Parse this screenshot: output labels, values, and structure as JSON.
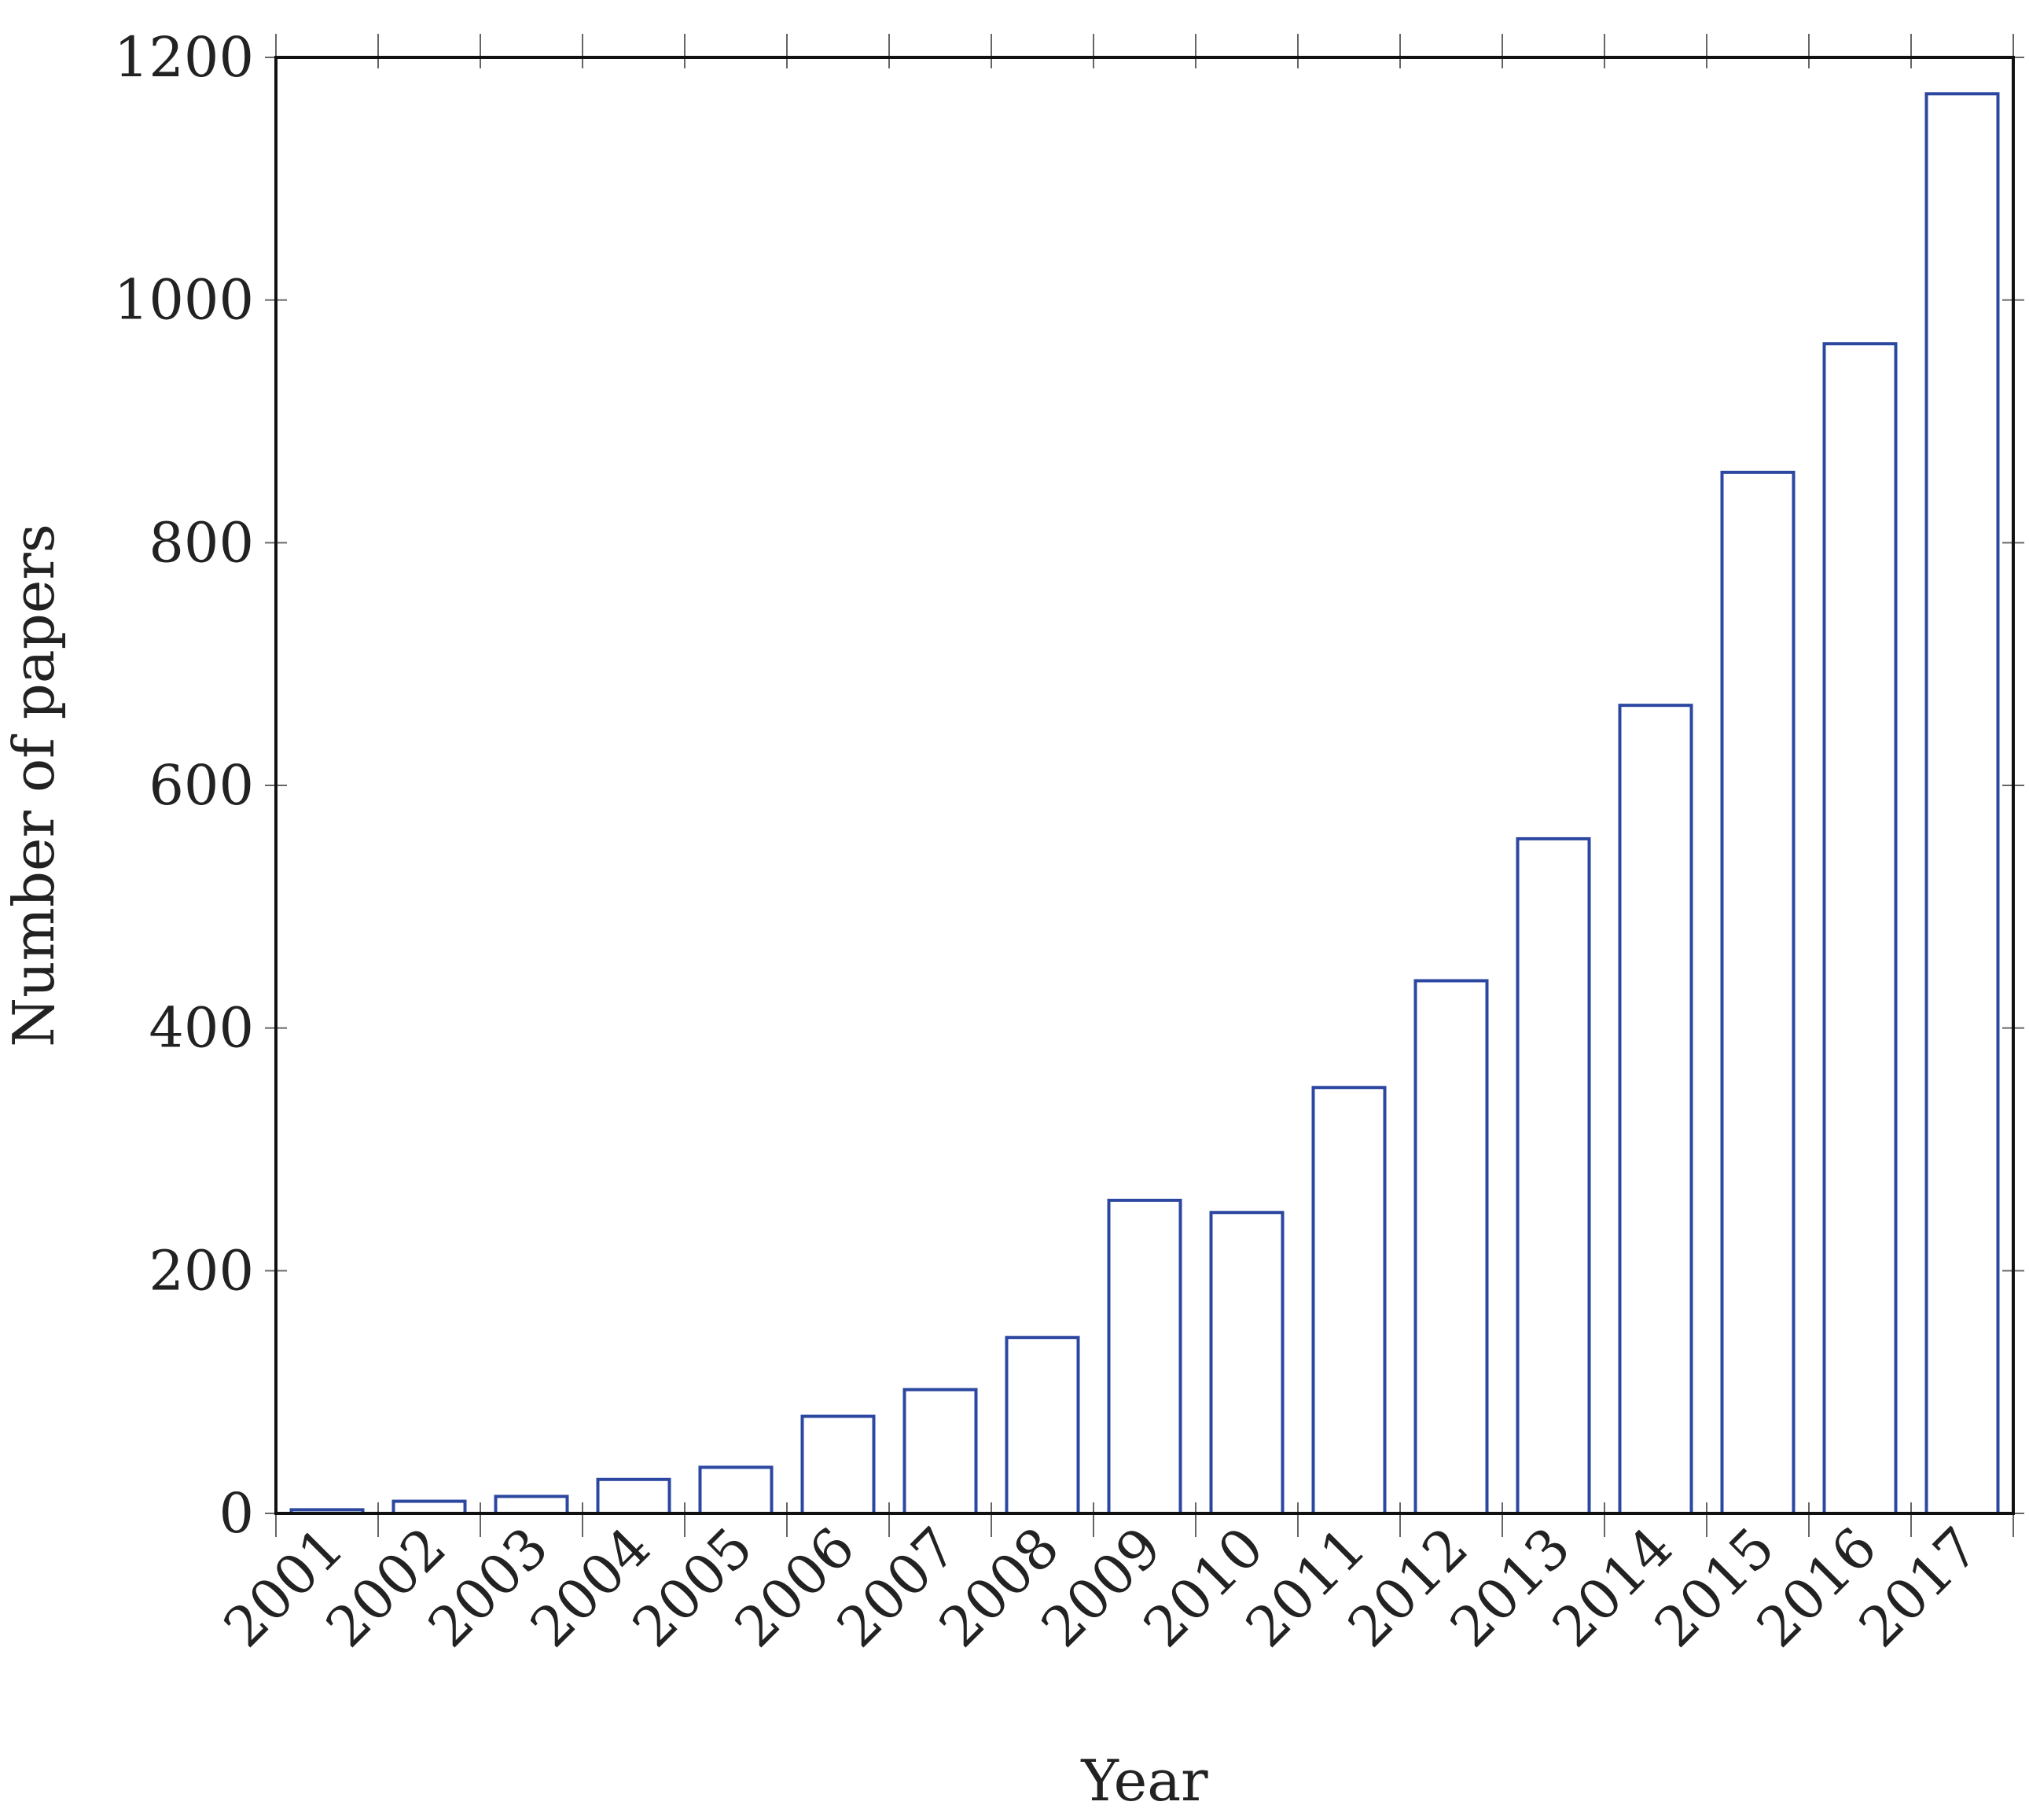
{
  "chart_data": {
    "type": "bar",
    "categories": [
      "2001",
      "2002",
      "2003",
      "2004",
      "2005",
      "2006",
      "2007",
      "2008",
      "2009",
      "2010",
      "2011",
      "2012",
      "2013",
      "2014",
      "2015",
      "2016",
      "2017"
    ],
    "values": [
      3,
      10,
      14,
      28,
      38,
      80,
      102,
      145,
      258,
      248,
      351,
      439,
      556,
      666,
      858,
      964,
      1170
    ],
    "xlabel": "Year",
    "ylabel": "Number of papers",
    "ylim": [
      0,
      1200
    ],
    "yticks": [
      0,
      200,
      400,
      600,
      800,
      1000,
      1200
    ],
    "grid": false,
    "colors": {
      "bar_outline": "#2b47a0",
      "bar_fill": "#ffffff"
    }
  }
}
